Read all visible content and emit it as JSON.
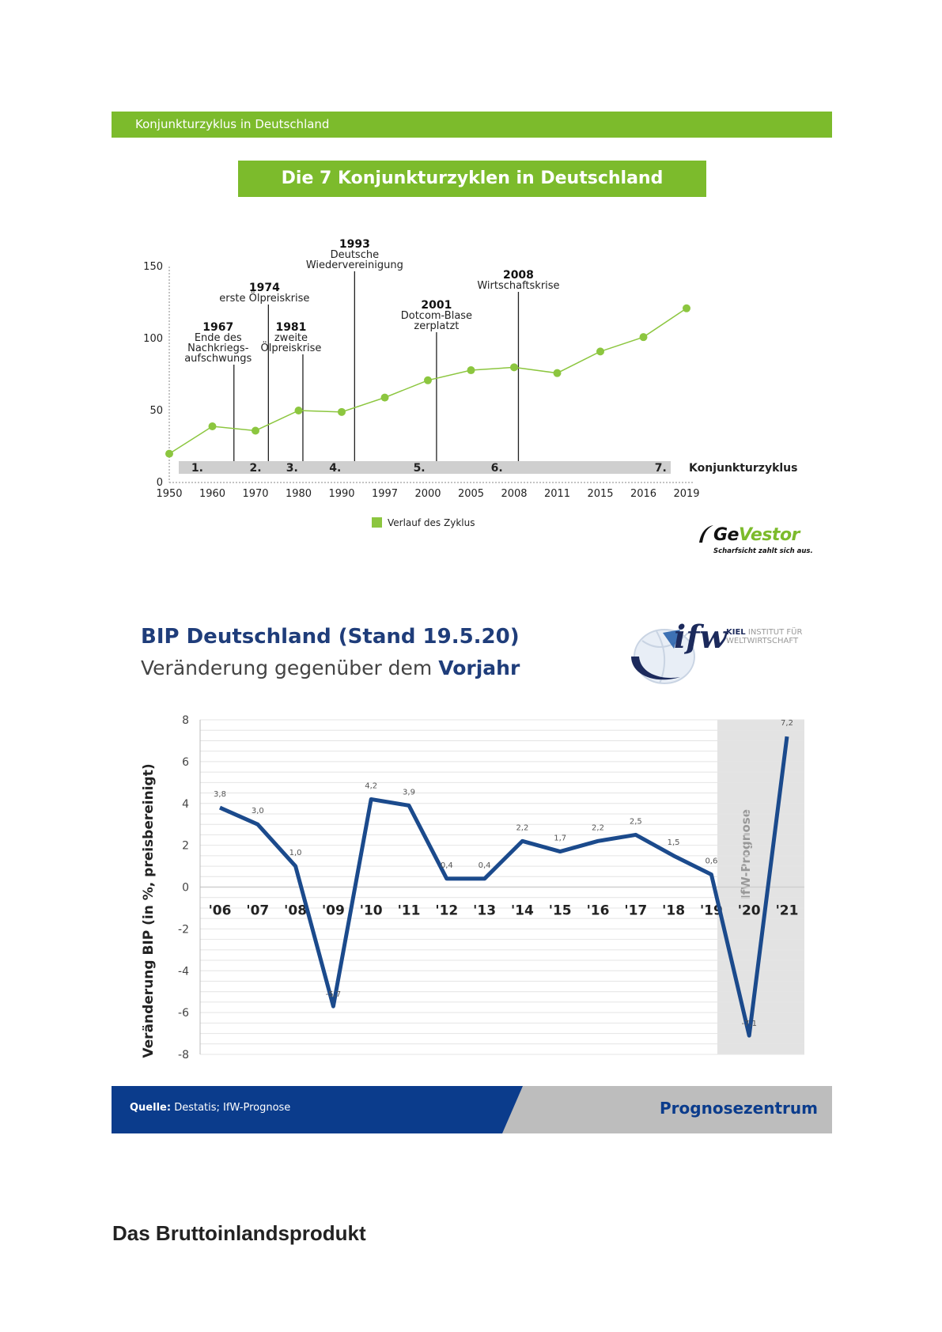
{
  "header": {
    "bar_text": "Konjunkturzyklus in Deutschland"
  },
  "chart1": {
    "title": "Die 7 Konjunkturzyklen in Deutschland",
    "legend": "Verlauf des Zyklus",
    "band_label": "Konjunkturzyklus",
    "colors": {
      "line": "#8cc63f",
      "band": "#cfcfcf"
    }
  },
  "logo1": {
    "brand_a": "Ge",
    "brand_b": "Vestor",
    "slogan": "Scharfsicht zahlt sich aus."
  },
  "chart2_header": {
    "title": "BIP Deutschland (Stand 19.5.20)",
    "subtitle_a": "Veränderung gegenüber dem ",
    "subtitle_b": "Vorjahr"
  },
  "ifw_logo": {
    "text": "ifw",
    "kiel_a": "KIEL",
    "kiel_b": " INSTITUT FÜR",
    "kiel_c": "WELTWIRTSCHAFT"
  },
  "footer": {
    "source_label": "Quelle:",
    "source_text": " Destatis; IfW-Prognose",
    "right": "Prognosezentrum"
  },
  "page_heading": "Das Bruttoinlandsprodukt",
  "chart_data": [
    {
      "type": "line",
      "title": "Die 7 Konjunkturzyklen in Deutschland",
      "x": [
        "1950",
        "1960",
        "1970",
        "1980",
        "1990",
        "1997",
        "2000",
        "2005",
        "2008",
        "2011",
        "2015",
        "2016",
        "2019"
      ],
      "series": [
        {
          "name": "Verlauf des Zyklus",
          "values": [
            20,
            39,
            36,
            50,
            49,
            59,
            71,
            78,
            80,
            76,
            91,
            101,
            121
          ]
        }
      ],
      "ylim": [
        0,
        150
      ],
      "yticks": [
        0,
        50,
        100,
        150
      ],
      "cycles": [
        "1.",
        "2.",
        "3.",
        "4.",
        "5.",
        "6.",
        "7."
      ],
      "cycle_label": "Konjunkturzyklus",
      "events": [
        {
          "year": "1967",
          "lines": [
            "Ende des",
            "Nachkriegs-",
            "aufschwungs"
          ],
          "pos": 1.5
        },
        {
          "year": "1974",
          "lines": [
            "erste Ölpreiskrise"
          ],
          "pos": 2.3
        },
        {
          "year": "1981",
          "lines": [
            "zweite",
            "Ölpreiskrise"
          ],
          "pos": 3.1
        },
        {
          "year": "1993",
          "lines": [
            "Deutsche",
            "Wiedervereinigung"
          ],
          "pos": 4.3
        },
        {
          "year": "2001",
          "lines": [
            "Dotcom-Blase",
            "zerplatzt"
          ],
          "pos": 6.2
        },
        {
          "year": "2008",
          "lines": [
            "Wirtschaftskrise"
          ],
          "pos": 8.1
        }
      ],
      "legend": "Verlauf des Zyklus"
    },
    {
      "type": "line",
      "title": "BIP Deutschland (Stand 19.5.20)",
      "ylabel": "Veränderung BIP (in %, preisbereinigt)",
      "x": [
        "'06",
        "'07",
        "'08",
        "'09",
        "'10",
        "'11",
        "'12",
        "'13",
        "'14",
        "'15",
        "'16",
        "'17",
        "'18",
        "'19",
        "'20",
        "'21"
      ],
      "series": [
        {
          "name": "BIP",
          "values": [
            3.8,
            3.0,
            1.0,
            -5.7,
            4.2,
            3.9,
            0.4,
            0.4,
            2.2,
            1.7,
            2.2,
            2.5,
            1.5,
            0.6,
            -7.1,
            7.2
          ]
        }
      ],
      "data_labels": [
        "3,8",
        "3,0",
        "1,0",
        "-5,7",
        "4,2",
        "3,9",
        "0,4",
        "0,4",
        "2,2",
        "1,7",
        "2,2",
        "2,5",
        "1,5",
        "0,6",
        "-7,1",
        "7,2"
      ],
      "ylim": [
        -8,
        8
      ],
      "yticks": [
        8,
        6,
        4,
        2,
        0,
        -2,
        -4,
        -6,
        -8
      ],
      "forecast_label": "IfW-Prognose",
      "colors": {
        "line": "#1b4a8c",
        "forecast_bg": "#e3e3e3"
      }
    }
  ]
}
